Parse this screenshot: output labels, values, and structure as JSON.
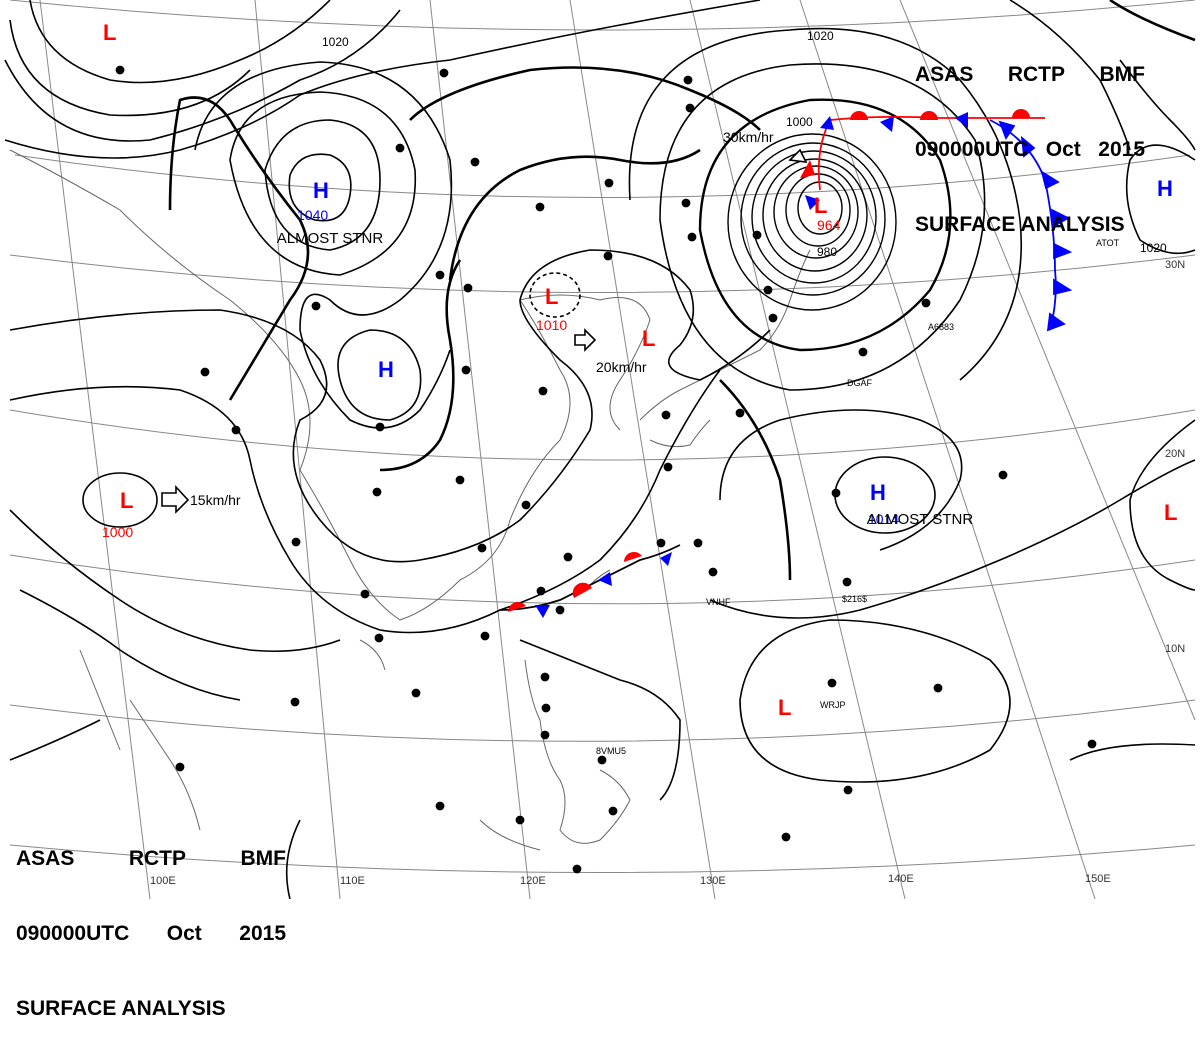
{
  "header": {
    "line1": [
      "ASAS",
      "RCTP",
      "BMF"
    ],
    "line2": [
      "090000UTC",
      "Oct",
      "2015"
    ],
    "line3": "SURFACE ANALYSIS"
  },
  "centers": [
    {
      "type": "L",
      "pressure": ""
    },
    {
      "type": "H",
      "pressure": "1040",
      "note": "ALMOST STNR"
    },
    {
      "type": "H",
      "pressure": ""
    },
    {
      "type": "L",
      "pressure": "1010",
      "motion": "20km/hr"
    },
    {
      "type": "L",
      "pressure": ""
    },
    {
      "type": "L",
      "pressure": "964",
      "motion": "30km/hr"
    },
    {
      "type": "H",
      "pressure": ""
    },
    {
      "type": "L",
      "pressure": "1000",
      "motion": "15km/hr"
    },
    {
      "type": "H",
      "pressure": "1014",
      "note": "ALMOST STNR"
    },
    {
      "type": "L",
      "pressure": ""
    },
    {
      "type": "L",
      "pressure": ""
    }
  ],
  "isobar_labels": [
    "1020",
    "1020",
    "1000",
    "980",
    "1020"
  ],
  "longitude_labels": [
    "100E",
    "110E",
    "120E",
    "130E",
    "140E",
    "150E"
  ],
  "latitude_labels": [
    "30N",
    "20N",
    "10N"
  ],
  "station_labels": [
    "VNHF",
    "$216$",
    "WRJP",
    "8VMU5",
    "DGAF",
    "A6883",
    "ATOT"
  ],
  "colors": {
    "low": "#ff0000",
    "high": "#0000ff",
    "isobar": "#000000",
    "front_blue": "#0000ff",
    "front_red": "#ff0000"
  }
}
